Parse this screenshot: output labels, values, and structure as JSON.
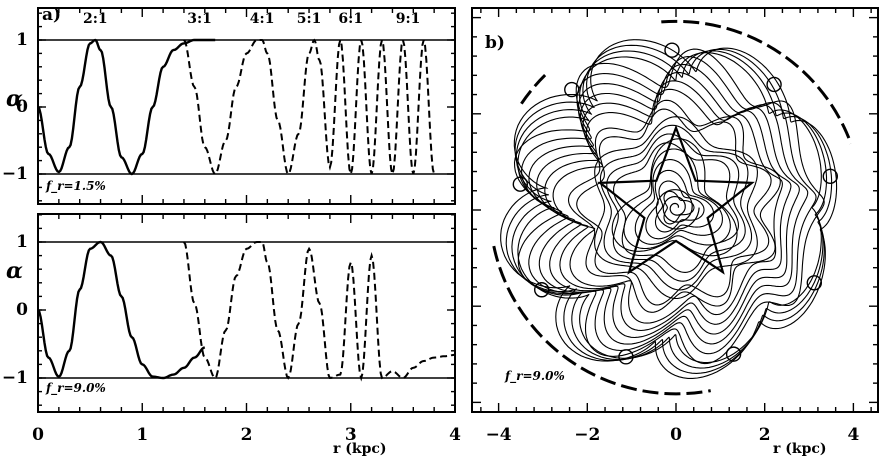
{
  "figure": {
    "panel_a_label": "a)",
    "panel_b_label": "b)",
    "resonances": [
      "2:1",
      "3:1",
      "4:1",
      "5:1",
      "6:1",
      "9:1"
    ],
    "top_ylabel": "α",
    "bottom_ylabel": "α",
    "top_annotation": "f_r=1.5%",
    "bottom_annotation": "f_r=9.0%",
    "orbit_annotation": "f_r=9.0%",
    "xlabel_a": "r (kpc)",
    "xlabel_b": "r (kpc)"
  },
  "chart_data": [
    {
      "type": "line",
      "panel": "a-top",
      "xlim": [
        0,
        4
      ],
      "ylim": [
        -1.5,
        1.5
      ],
      "yticks": [
        "1",
        "0",
        "−1"
      ],
      "annotation": "f_r=1.5%",
      "resonance_labels": [
        {
          "label": "2:1",
          "r": 0.55
        },
        {
          "label": "3:1",
          "r": 1.55
        },
        {
          "label": "4:1",
          "r": 2.15
        },
        {
          "label": "5:1",
          "r": 2.6
        },
        {
          "label": "6:1",
          "r": 3.0
        },
        {
          "label": "9:1",
          "r": 3.55
        }
      ],
      "series": [
        {
          "style": "solid",
          "x": [
            0.0,
            0.1,
            0.2,
            0.3,
            0.4,
            0.5,
            0.55,
            0.6,
            0.7,
            0.8,
            0.9,
            1.0,
            1.1,
            1.2,
            1.3,
            1.4,
            1.5,
            1.6,
            1.7
          ],
          "y": [
            0.0,
            -0.7,
            -0.97,
            -0.6,
            0.3,
            0.95,
            1.0,
            0.85,
            0.0,
            -0.75,
            -1.0,
            -0.7,
            0.0,
            0.6,
            0.85,
            0.95,
            1.0,
            1.0,
            1.0
          ]
        },
        {
          "style": "dashed",
          "x": [
            1.4,
            1.5,
            1.6,
            1.7,
            1.8,
            1.9,
            2.0,
            2.1,
            2.15,
            2.2,
            2.3,
            2.4,
            2.5,
            2.6,
            2.65,
            2.7,
            2.8,
            2.9,
            3.0,
            3.1,
            3.2,
            3.3,
            3.4,
            3.5,
            3.6,
            3.7,
            3.8
          ],
          "y": [
            1.0,
            0.3,
            -0.6,
            -1.0,
            -0.5,
            0.3,
            0.8,
            1.0,
            1.0,
            0.8,
            -0.2,
            -1.0,
            -0.4,
            0.8,
            1.0,
            0.7,
            -0.9,
            1.0,
            -1.0,
            1.0,
            -1.0,
            1.0,
            -1.0,
            1.0,
            -1.0,
            1.0,
            -1.0
          ]
        }
      ]
    },
    {
      "type": "line",
      "panel": "a-bottom",
      "xlim": [
        0,
        4
      ],
      "ylim": [
        -1.5,
        1.5
      ],
      "yticks": [
        "1",
        "0",
        "−1"
      ],
      "xticks": [
        "0",
        "1",
        "2",
        "3",
        "4"
      ],
      "xlabel": "r (kpc)",
      "annotation": "f_r=9.0%",
      "series": [
        {
          "style": "solid",
          "x": [
            0.0,
            0.1,
            0.2,
            0.3,
            0.4,
            0.5,
            0.6,
            0.7,
            0.8,
            0.9,
            1.0,
            1.1,
            1.2,
            1.3,
            1.4,
            1.5,
            1.6
          ],
          "y": [
            0.0,
            -0.7,
            -0.98,
            -0.6,
            0.3,
            0.9,
            1.0,
            0.8,
            0.2,
            -0.4,
            -0.8,
            -0.98,
            -1.0,
            -0.95,
            -0.85,
            -0.7,
            -0.55
          ]
        },
        {
          "style": "dashed",
          "x": [
            1.4,
            1.5,
            1.6,
            1.7,
            1.8,
            1.9,
            2.0,
            2.1,
            2.15,
            2.2,
            2.3,
            2.4,
            2.5,
            2.6,
            2.7,
            2.8,
            2.9,
            3.0,
            3.1,
            3.2,
            3.3,
            3.4,
            3.5,
            3.6,
            3.7,
            3.8,
            3.9,
            4.0
          ],
          "y": [
            1.0,
            0.1,
            -0.7,
            -1.0,
            -0.3,
            0.5,
            0.9,
            1.0,
            1.0,
            0.7,
            -0.3,
            -1.0,
            -0.2,
            0.9,
            0.1,
            -1.0,
            -0.95,
            0.7,
            -1.0,
            0.8,
            -1.0,
            -0.9,
            -1.0,
            -0.85,
            -0.75,
            -0.7,
            -0.68,
            -0.66
          ]
        }
      ]
    },
    {
      "type": "line",
      "panel": "b",
      "xlim": [
        -4.6,
        4.6
      ],
      "ylim": [
        -4.2,
        4.2
      ],
      "xticks": [
        "−4",
        "−2",
        "0",
        "2",
        "4"
      ],
      "xlabel": "r (kpc)",
      "annotation": "f_r=9.0%",
      "description_series": [
        {
          "name": "orbits",
          "style": "solid"
        },
        {
          "name": "corotation",
          "style": "dashed",
          "radius": 4.2
        }
      ]
    }
  ]
}
